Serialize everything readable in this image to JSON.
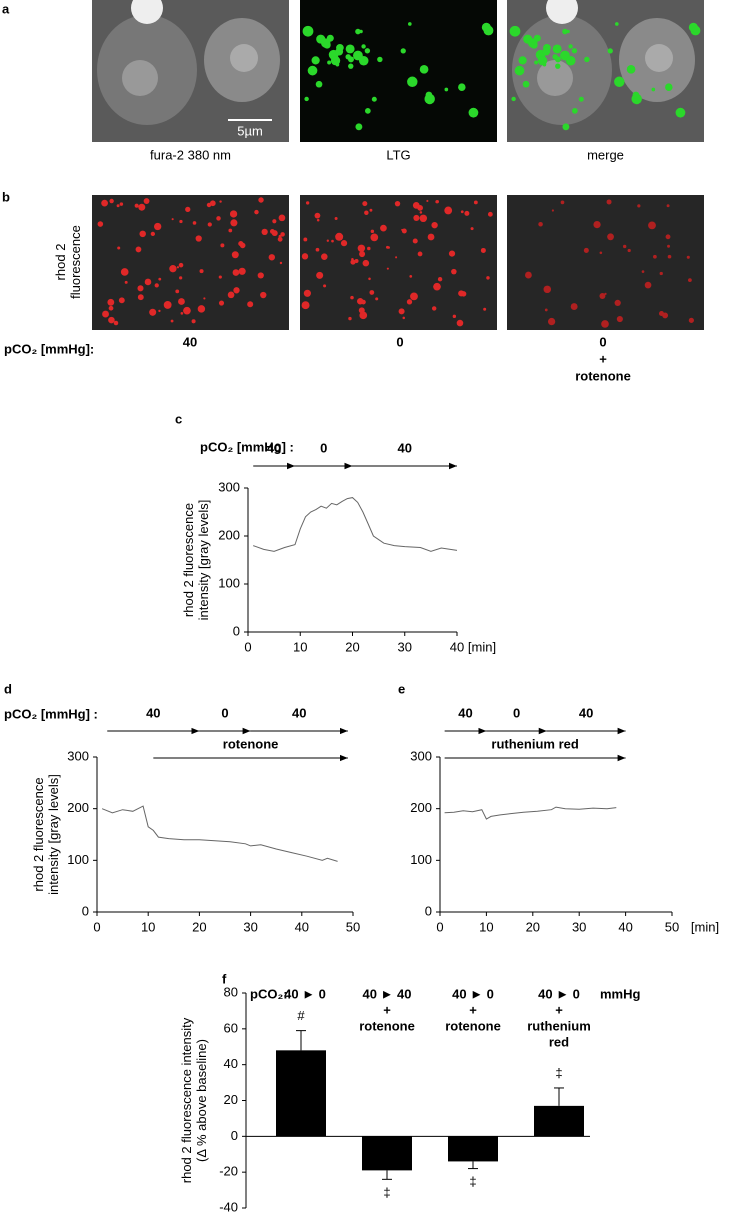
{
  "panel_labels": [
    "a",
    "b",
    "c",
    "d",
    "e",
    "f"
  ],
  "row_a": {
    "captions": [
      "fura-2 380 nm",
      "LTG",
      "merge"
    ],
    "scale_bar": "5µm"
  },
  "row_b": {
    "y_label": [
      "rhod 2",
      "fluorescence"
    ],
    "condition_title": "pCO₂ [mmHg]:",
    "conditions": [
      [
        "40"
      ],
      [
        "0"
      ],
      [
        "0",
        "+",
        "rotenone"
      ]
    ]
  },
  "chart_data": [
    {
      "type": "line",
      "protocol_title": "pCO₂ [mmHg] :",
      "protocol": [
        {
          "label": "40",
          "start": 1,
          "end": 9
        },
        {
          "label": "0",
          "start": 9,
          "end": 20
        },
        {
          "label": "40",
          "start": 20,
          "end": 40
        }
      ],
      "y_label": [
        "rhod 2 fluorescence",
        "intensity [gray levels]"
      ],
      "x_unit": "[min]",
      "x": [
        1,
        3,
        5,
        7,
        9,
        10,
        11,
        12,
        13,
        14,
        15,
        16,
        17,
        18,
        19,
        20,
        21,
        22,
        23,
        24,
        26,
        28,
        30,
        33,
        35,
        37,
        40
      ],
      "values": [
        180,
        172,
        168,
        176,
        182,
        215,
        240,
        250,
        255,
        262,
        258,
        268,
        265,
        272,
        278,
        280,
        270,
        250,
        225,
        200,
        185,
        180,
        178,
        176,
        168,
        175,
        170
      ],
      "color": "#666666",
      "xlim": [
        0,
        40
      ],
      "xticks": [
        0,
        10,
        20,
        30,
        40
      ],
      "ylim": [
        0,
        300
      ],
      "yticks": [
        0,
        100,
        200,
        300
      ]
    },
    {
      "type": "line",
      "protocol_title": "pCO₂ [mmHg] :",
      "protocol": [
        {
          "label": "40",
          "start": 2,
          "end": 20
        },
        {
          "label": "0",
          "start": 20,
          "end": 30
        },
        {
          "label": "40",
          "start": 30,
          "end": 49
        }
      ],
      "treatment": {
        "label": "rotenone",
        "start": 11,
        "end": 49
      },
      "y_label": [
        "rhod 2 fluorescence",
        "intensity [gray levels]"
      ],
      "x": [
        1,
        3,
        5,
        7,
        9,
        10,
        11,
        12,
        14,
        17,
        20,
        23,
        26,
        29,
        30,
        32,
        35,
        38,
        41,
        44,
        45,
        47
      ],
      "values": [
        200,
        192,
        198,
        195,
        205,
        165,
        158,
        145,
        142,
        140,
        140,
        138,
        136,
        132,
        128,
        130,
        122,
        115,
        108,
        100,
        104,
        98
      ],
      "color": "#666666",
      "xlim": [
        0,
        50
      ],
      "xticks": [
        0,
        10,
        20,
        30,
        40,
        50
      ],
      "ylim": [
        0,
        300
      ],
      "yticks": [
        0,
        100,
        200,
        300
      ]
    },
    {
      "type": "line",
      "protocol": [
        {
          "label": "40",
          "start": 1,
          "end": 10
        },
        {
          "label": "0",
          "start": 10,
          "end": 23
        },
        {
          "label": "40",
          "start": 23,
          "end": 40
        }
      ],
      "treatment": {
        "label": "ruthenium red",
        "start": 1,
        "end": 40
      },
      "x_unit": "[min]",
      "x": [
        1,
        3,
        5,
        7,
        9,
        10,
        11,
        13,
        15,
        18,
        21,
        24,
        25,
        27,
        30,
        33,
        36,
        38
      ],
      "values": [
        192,
        193,
        196,
        194,
        198,
        180,
        185,
        188,
        190,
        193,
        195,
        198,
        203,
        200,
        199,
        201,
        200,
        202
      ],
      "color": "#666666",
      "xlim": [
        0,
        50
      ],
      "xticks": [
        0,
        10,
        20,
        30,
        40,
        50
      ],
      "ylim": [
        0,
        300
      ],
      "yticks": [
        0,
        100,
        200,
        300
      ]
    },
    {
      "type": "bar",
      "header": "pCO₂:",
      "unit": "mmHg",
      "categories": [
        [
          "40 ► 0"
        ],
        [
          "40 ► 40",
          "+",
          "rotenone"
        ],
        [
          "40 ► 0",
          "+",
          "rotenone"
        ],
        [
          "40 ► 0",
          "+",
          "ruthenium",
          "red"
        ]
      ],
      "values": [
        48,
        -19,
        -14,
        17
      ],
      "errors": [
        11,
        5,
        4,
        10
      ],
      "annotations": [
        "#",
        "‡",
        "‡",
        "‡"
      ],
      "y_label": [
        "rhod 2 fluorescence intensity",
        "(Δ % above baseline)"
      ],
      "color": "#000000",
      "ylim": [
        -40,
        80
      ],
      "yticks": [
        -40,
        -20,
        0,
        20,
        40,
        60,
        80
      ]
    }
  ]
}
